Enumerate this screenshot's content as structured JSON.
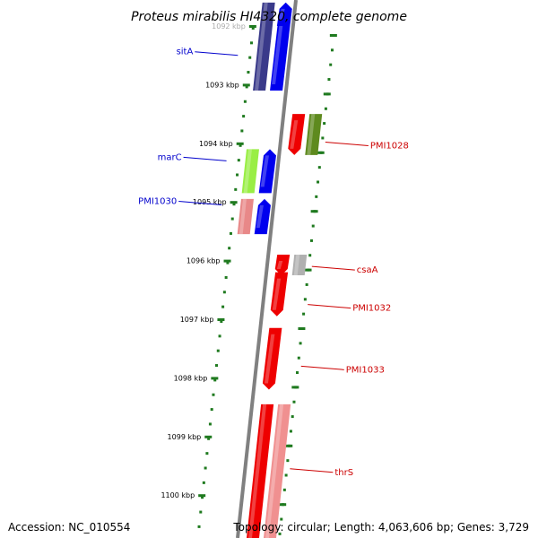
{
  "title": "Proteus mirabilis HI4320, complete genome",
  "footer": {
    "accession": "Accession: NC_010554",
    "summary": "Topology: circular; Length: 4,063,606 bp; Genes: 3,729"
  },
  "colors": {
    "backbone": "#808080",
    "ruler": "#1f7a1f",
    "label_blue": "#0000cc",
    "label_red": "#cc0000"
  },
  "ticks": [
    {
      "label": "1092 kbp",
      "kbp": 1092
    },
    {
      "label": "1093 kbp",
      "kbp": 1093
    },
    {
      "label": "1094 kbp",
      "kbp": 1094
    },
    {
      "label": "1095 kbp",
      "kbp": 1095
    },
    {
      "label": "1096 kbp",
      "kbp": 1096
    },
    {
      "label": "1097 kbp",
      "kbp": 1097
    },
    {
      "label": "1098 kbp",
      "kbp": 1098
    },
    {
      "label": "1099 kbp",
      "kbp": 1099
    },
    {
      "label": "1100 kbp",
      "kbp": 1100
    }
  ],
  "features": [
    {
      "track": "fwd-outer",
      "start": 1091.6,
      "end": 1093.1,
      "color": "#3a3a8a"
    },
    {
      "track": "fwd-inner",
      "start": 1091.6,
      "end": 1093.1,
      "color": "#0000ee",
      "arrow": "up"
    },
    {
      "track": "fwd-inner",
      "start": 1091.6,
      "end": 1092.0,
      "color": "#0000ee",
      "arrow": "up"
    },
    {
      "track": "rev-inner",
      "start": 1093.5,
      "end": 1094.2,
      "color": "#ee0000",
      "arrow": "down"
    },
    {
      "track": "rev-outer",
      "start": 1093.5,
      "end": 1094.2,
      "color": "#5e8a1e"
    },
    {
      "track": "fwd-outer",
      "start": 1094.1,
      "end": 1094.85,
      "color": "#99ee44"
    },
    {
      "track": "fwd-inner",
      "start": 1094.1,
      "end": 1094.85,
      "color": "#0000ee",
      "arrow": "up"
    },
    {
      "track": "fwd-outer",
      "start": 1094.95,
      "end": 1095.55,
      "color": "#e88888"
    },
    {
      "track": "fwd-inner",
      "start": 1094.95,
      "end": 1095.55,
      "color": "#0000ee",
      "arrow": "up"
    },
    {
      "track": "rev-inner",
      "start": 1095.9,
      "end": 1096.25,
      "color": "#ee0000",
      "arrow": "down"
    },
    {
      "track": "rev-outer",
      "start": 1095.9,
      "end": 1096.25,
      "color": "#b0b0b0"
    },
    {
      "track": "rev-inner",
      "start": 1096.2,
      "end": 1096.95,
      "color": "#ee0000",
      "arrow": "down"
    },
    {
      "track": "rev-inner",
      "start": 1097.15,
      "end": 1098.2,
      "color": "#ee0000",
      "arrow": "down"
    },
    {
      "track": "rev-inner",
      "start": 1098.45,
      "end": 1100.9,
      "color": "#ee0000"
    },
    {
      "track": "rev-outer",
      "start": 1098.45,
      "end": 1100.9,
      "color": "#f09090"
    }
  ],
  "labels": [
    {
      "text": "sitA",
      "side": "left",
      "kbp": 1092.5,
      "color": "#0000cc"
    },
    {
      "text": "PMI1028",
      "side": "right",
      "kbp": 1093.98,
      "color": "#cc0000"
    },
    {
      "text": "marC",
      "side": "left",
      "kbp": 1094.3,
      "color": "#0000cc"
    },
    {
      "text": "PMI1030",
      "side": "left",
      "kbp": 1095.05,
      "color": "#0000cc"
    },
    {
      "text": "csaA",
      "side": "right",
      "kbp": 1096.1,
      "color": "#cc0000"
    },
    {
      "text": "PMI1032",
      "side": "right",
      "kbp": 1096.75,
      "color": "#cc0000"
    },
    {
      "text": "PMI1033",
      "side": "right",
      "kbp": 1097.8,
      "color": "#cc0000"
    },
    {
      "text": "thrS",
      "side": "right",
      "kbp": 1099.55,
      "color": "#cc0000"
    }
  ]
}
